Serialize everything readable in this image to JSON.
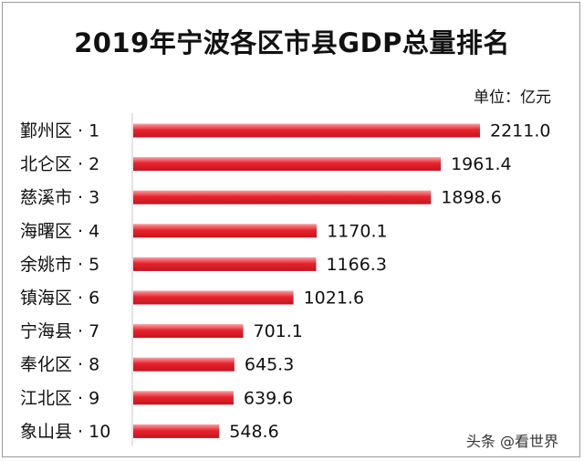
{
  "chart_data": {
    "type": "bar",
    "orientation": "horizontal",
    "title": "2019年宁波各区市县GDP总量排名",
    "unit_label": "单位：亿元",
    "categories": [
      "鄞州区 · 1",
      "北仑区 · 2",
      "慈溪市 · 3",
      "海曙区 · 4",
      "余姚市 · 5",
      "镇海区 · 6",
      "宁海县 · 7",
      "奉化区 · 8",
      "江北区 · 9",
      "象山县 · 10"
    ],
    "values": [
      2211.0,
      1961.4,
      1898.6,
      1170.1,
      1166.3,
      1021.6,
      701.1,
      645.3,
      639.6,
      548.6
    ],
    "value_labels": [
      "2211.0",
      "1961.4",
      "1898.6",
      "1170.1",
      "1166.3",
      "1021.6",
      "701.1",
      "645.3",
      "639.6",
      "548.6"
    ],
    "bar_color": "#e8232d",
    "grid": false,
    "legend": "none"
  },
  "watermark": {
    "text": "头条 @看世界"
  }
}
